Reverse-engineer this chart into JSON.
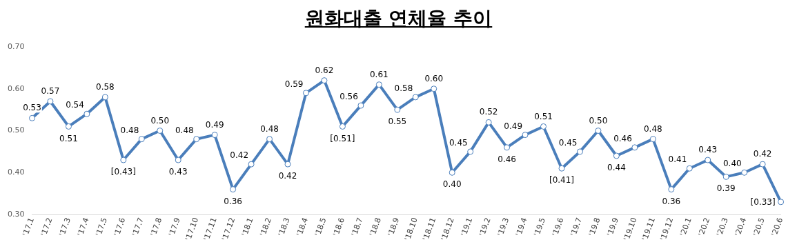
{
  "chart_data": {
    "type": "line",
    "title": "원화대출 연체율 추이",
    "categories": [
      "'17.1",
      "'17.2",
      "'17.3",
      "'17.4",
      "'17.5",
      "'17.6",
      "'17.7",
      "'17.8",
      "'17.9",
      "'17.10",
      "'17.11",
      "'17.12",
      "'18.1",
      "'18.2",
      "'18.3",
      "'18.4",
      "'18.5",
      "'18.6",
      "'18.7",
      "'18.8",
      "'18.9",
      "'18.10",
      "'18.11",
      "'18.12",
      "'19.1",
      "'19.2",
      "'19.3",
      "'19.4",
      "'19.5",
      "'19.6",
      "'19.7",
      "'19.8",
      "'19.9",
      "'19.10",
      "'19.11",
      "'19.12",
      "'20.1",
      "'20.2",
      "'20.3",
      "'20.4",
      "'20.5",
      "'20.6"
    ],
    "series": [
      {
        "color": "#4a7ebb",
        "values": [
          0.53,
          0.57,
          0.51,
          0.54,
          0.58,
          0.43,
          0.48,
          0.5,
          0.43,
          0.48,
          0.49,
          0.36,
          0.42,
          0.48,
          0.42,
          0.59,
          0.62,
          0.51,
          0.56,
          0.61,
          0.55,
          0.58,
          0.6,
          0.4,
          0.45,
          0.52,
          0.46,
          0.49,
          0.51,
          0.41,
          0.45,
          0.5,
          0.44,
          0.46,
          0.48,
          0.36,
          0.41,
          0.43,
          0.39,
          0.4,
          0.42,
          0.33
        ],
        "value_labels": [
          "0.53",
          "0.57",
          "0.51",
          "0.54",
          "0.58",
          "[0.43]",
          "0.48",
          "0.50",
          "0.43",
          "0.48",
          "0.49",
          "0.36",
          "0.42",
          "0.48",
          "0.42",
          "0.59",
          "0.62",
          "[0.51]",
          "0.56",
          "0.61",
          "0.55",
          "0.58",
          "0.60",
          "0.40",
          "0.45",
          "0.52",
          "0.46",
          "0.49",
          "0.51",
          "[0.41]",
          "0.45",
          "0.50",
          "0.44",
          "0.46",
          "0.48",
          "0.36",
          "0.41",
          "0.43",
          "0.39",
          "0.40",
          "0.42",
          "[0.33]"
        ]
      }
    ],
    "ylim": [
      0.3,
      0.7
    ],
    "yticks": [
      {
        "value": 0.3,
        "label": "0.30"
      },
      {
        "value": 0.4,
        "label": "0.40"
      },
      {
        "value": 0.5,
        "label": "0.50"
      },
      {
        "value": 0.6,
        "label": "0.60"
      },
      {
        "value": 0.7,
        "label": "0.70"
      }
    ],
    "grid": false,
    "legend": false,
    "marker": "circle",
    "line_style": "solid"
  }
}
